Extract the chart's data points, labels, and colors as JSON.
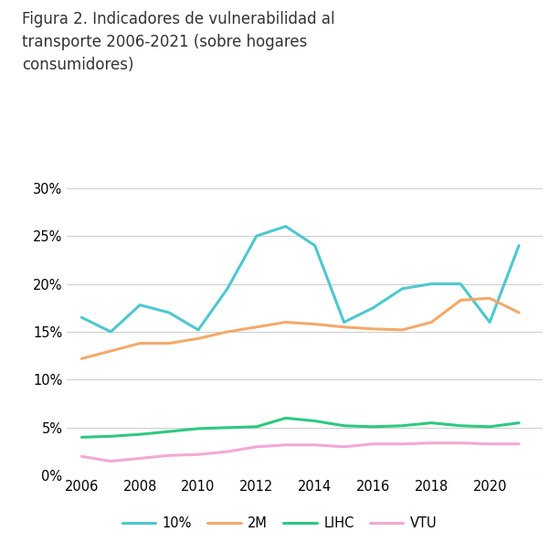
{
  "title": "Figura 2. Indicadores de vulnerabilidad al\ntransporte 2006-2021 (sobre hogares\nconsumidores)",
  "years": [
    2006,
    2007,
    2008,
    2009,
    2010,
    2011,
    2012,
    2013,
    2014,
    2015,
    2016,
    2017,
    2018,
    2019,
    2020,
    2021
  ],
  "series": {
    "10%": [
      0.165,
      0.15,
      0.178,
      0.17,
      0.152,
      0.195,
      0.25,
      0.26,
      0.24,
      0.16,
      0.175,
      0.195,
      0.2,
      0.2,
      0.16,
      0.24
    ],
    "2M": [
      0.122,
      0.13,
      0.138,
      0.138,
      0.143,
      0.15,
      0.155,
      0.16,
      0.158,
      0.155,
      0.153,
      0.152,
      0.16,
      0.183,
      0.185,
      0.17
    ],
    "LIHC": [
      0.04,
      0.041,
      0.043,
      0.046,
      0.049,
      0.05,
      0.051,
      0.06,
      0.057,
      0.052,
      0.051,
      0.052,
      0.055,
      0.052,
      0.051,
      0.055
    ],
    "VTU": [
      0.02,
      0.015,
      0.018,
      0.021,
      0.022,
      0.025,
      0.03,
      0.032,
      0.032,
      0.03,
      0.033,
      0.033,
      0.034,
      0.034,
      0.033,
      0.033
    ]
  },
  "colors": {
    "10%": "#4DC8CE",
    "2M": "#F4A96A",
    "LIHC": "#2DC97E",
    "VTU": "#F4A8D4"
  },
  "ylim": [
    0.0,
    0.3
  ],
  "yticks": [
    0.0,
    0.05,
    0.1,
    0.15,
    0.2,
    0.25,
    0.3
  ],
  "xticks": [
    2006,
    2008,
    2010,
    2012,
    2014,
    2016,
    2018,
    2020
  ],
  "background_color": "#ffffff",
  "grid_color": "#d0d0d0",
  "title_fontsize": 12,
  "tick_fontsize": 10.5,
  "legend_fontsize": 10.5,
  "line_width": 2.2
}
